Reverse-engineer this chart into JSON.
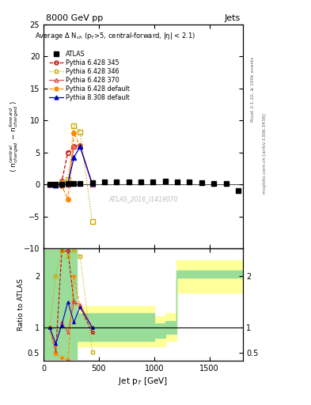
{
  "title_top": "8000 GeV pp",
  "title_right": "Jets",
  "subtitle": "Average Δ N$_{ch}$ (p$_{T}$>5, central-forward, |η| < 2.1)",
  "watermark": "ATLAS_2016_I1419070",
  "right_label_top": "Rivet 3.1.10, ≥ 100k events",
  "right_label_bottom": "mcplots.cern.ch [arXiv:1306.3436]",
  "ylabel_main": "⟨ n$^{central}_{charged}$ − n$^{forward}_{charged}$ ⟩",
  "ylabel_ratio": "Ratio to ATLAS",
  "xlabel": "Jet p$_{T}$ [GeV]",
  "ylim_main": [
    -10,
    25
  ],
  "ylim_ratio": [
    0.35,
    2.55
  ],
  "xlim": [
    0,
    1800
  ],
  "yticks_main": [
    -10,
    -5,
    0,
    5,
    10,
    15,
    20,
    25
  ],
  "yticks_ratio": [
    0.5,
    1.0,
    2.0
  ],
  "xticks": [
    0,
    500,
    1000,
    1500
  ],
  "atlas_x": [
    55,
    110,
    165,
    220,
    275,
    330,
    440,
    550,
    660,
    770,
    880,
    990,
    1100,
    1210,
    1320,
    1430,
    1540,
    1650,
    1760
  ],
  "atlas_y": [
    0.0,
    -0.05,
    -0.02,
    0.08,
    0.12,
    0.18,
    0.28,
    0.32,
    0.37,
    0.33,
    0.38,
    0.35,
    0.45,
    0.4,
    0.35,
    0.25,
    0.15,
    0.08,
    -1.0
  ],
  "p345_x": [
    55,
    110,
    165,
    220,
    275,
    330,
    440
  ],
  "p345_y": [
    0.0,
    -0.08,
    0.45,
    5.0,
    6.0,
    6.1,
    -0.05
  ],
  "p346_x": [
    55,
    110,
    165,
    220,
    275,
    330,
    440
  ],
  "p346_y": [
    0.0,
    0.04,
    0.25,
    0.8,
    9.2,
    8.2,
    -5.8
  ],
  "p370_x": [
    55,
    110,
    165,
    220,
    275,
    330,
    440
  ],
  "p370_y": [
    0.0,
    -0.08,
    0.08,
    -0.05,
    6.0,
    6.1,
    0.03
  ],
  "pdef_x": [
    55,
    110,
    165,
    220,
    275,
    330,
    440
  ],
  "pdef_y": [
    0.0,
    -0.15,
    -0.25,
    -2.3,
    8.0,
    6.0,
    -0.02
  ],
  "p8def_x": [
    55,
    110,
    165,
    220,
    275,
    330,
    440
  ],
  "p8def_y": [
    0.0,
    -0.08,
    0.04,
    0.08,
    4.2,
    5.9,
    0.08
  ],
  "color_345": "#cc0000",
  "color_346": "#ccaa00",
  "color_370": "#dd5555",
  "color_pdef": "#ff8800",
  "color_p8def": "#0000cc",
  "yb_edges": [
    0,
    100,
    200,
    300,
    400,
    500,
    700,
    1000,
    1100,
    1200,
    1300,
    1800
  ],
  "yb_lo": [
    0.38,
    0.38,
    0.38,
    0.62,
    0.62,
    0.62,
    0.62,
    0.62,
    0.73,
    1.68,
    1.68,
    1.68
  ],
  "yb_hi": [
    2.52,
    2.52,
    2.52,
    1.42,
    1.42,
    1.42,
    1.42,
    1.22,
    1.27,
    2.32,
    2.32,
    2.32
  ],
  "gb_edges": [
    0,
    100,
    200,
    300,
    400,
    500,
    700,
    1000,
    1100,
    1200,
    1300,
    1800
  ],
  "gb_lo": [
    0.38,
    0.38,
    0.38,
    0.73,
    0.73,
    0.73,
    0.73,
    0.8,
    0.88,
    1.98,
    1.98,
    1.98
  ],
  "gb_hi": [
    2.52,
    2.52,
    2.52,
    1.27,
    1.27,
    1.27,
    1.27,
    1.07,
    1.12,
    2.12,
    2.12,
    2.12
  ]
}
